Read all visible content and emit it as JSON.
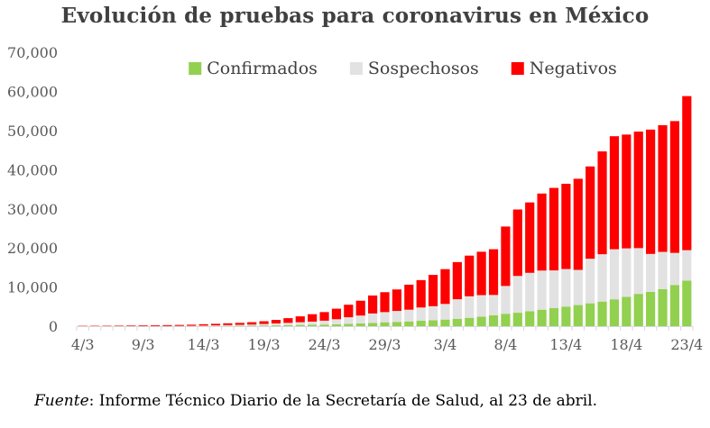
{
  "chart_data": {
    "type": "bar",
    "stacked": true,
    "title": "Evolución de pruebas para coronavirus en México",
    "xlabel": "",
    "ylabel": "",
    "ylim": [
      0,
      70000
    ],
    "yticks": [
      "0",
      "10,000",
      "20,000",
      "30,000",
      "40,000",
      "50,000",
      "60,000",
      "70,000"
    ],
    "ytick_values": [
      0,
      10000,
      20000,
      30000,
      40000,
      50000,
      60000,
      70000
    ],
    "xtick_labels": [
      "4/3",
      "9/3",
      "14/3",
      "19/3",
      "24/3",
      "29/3",
      "3/4",
      "8/4",
      "13/4",
      "18/4",
      "23/4"
    ],
    "categories": [
      "4/3",
      "5/3",
      "6/3",
      "7/3",
      "8/3",
      "9/3",
      "10/3",
      "11/3",
      "12/3",
      "13/3",
      "14/3",
      "15/3",
      "16/3",
      "17/3",
      "18/3",
      "19/3",
      "20/3",
      "21/3",
      "22/3",
      "23/3",
      "24/3",
      "25/3",
      "26/3",
      "27/3",
      "28/3",
      "29/3",
      "30/3",
      "31/3",
      "1/4",
      "2/4",
      "3/4",
      "4/4",
      "5/4",
      "6/4",
      "7/4",
      "8/4",
      "9/4",
      "10/4",
      "11/4",
      "12/4",
      "13/4",
      "14/4",
      "15/4",
      "16/4",
      "17/4",
      "18/4",
      "19/4",
      "20/4",
      "21/4",
      "22/4",
      "23/4"
    ],
    "legend_position": "top",
    "grid": false,
    "series": [
      {
        "name": "Confirmados",
        "color": "#92d050",
        "values": [
          5,
          5,
          7,
          7,
          7,
          7,
          7,
          11,
          15,
          26,
          41,
          53,
          82,
          93,
          118,
          164,
          203,
          251,
          316,
          367,
          405,
          475,
          585,
          717,
          848,
          993,
          1094,
          1215,
          1378,
          1510,
          1688,
          1890,
          2143,
          2439,
          2785,
          3181,
          3441,
          3844,
          4219,
          4661,
          5014,
          5399,
          5847,
          6297,
          6875,
          7497,
          8261,
          8772,
          9501,
          10544,
          11633
        ]
      },
      {
        "name": "Sospechosos",
        "color": "#e2e2e2",
        "values": [
          10,
          8,
          8,
          8,
          10,
          12,
          15,
          20,
          50,
          80,
          110,
          150,
          200,
          250,
          300,
          400,
          500,
          600,
          700,
          800,
          1000,
          1300,
          1700,
          2000,
          2400,
          2600,
          2800,
          3000,
          3400,
          3600,
          4000,
          5000,
          5500,
          5500,
          5200,
          7100,
          9400,
          9800,
          10000,
          9600,
          9600,
          9000,
          11400,
          12100,
          12800,
          12400,
          11700,
          9700,
          9500,
          8200,
          7800
        ]
      },
      {
        "name": "Negativos",
        "color": "#ff0000",
        "values": [
          80,
          90,
          100,
          120,
          150,
          180,
          200,
          240,
          250,
          280,
          350,
          400,
          450,
          500,
          600,
          700,
          900,
          1200,
          1500,
          1900,
          2200,
          2700,
          3200,
          3800,
          4600,
          5100,
          5500,
          6400,
          7000,
          8000,
          8900,
          9500,
          10400,
          11100,
          11700,
          15200,
          17000,
          18000,
          19700,
          21100,
          21800,
          23300,
          23600,
          26300,
          28900,
          29100,
          29800,
          31800,
          32400,
          33700,
          39400
        ]
      }
    ]
  },
  "source": {
    "label": "Fuente",
    "text": ": Informe Técnico Diario de la Secretaría de Salud, al 23 de abril."
  }
}
